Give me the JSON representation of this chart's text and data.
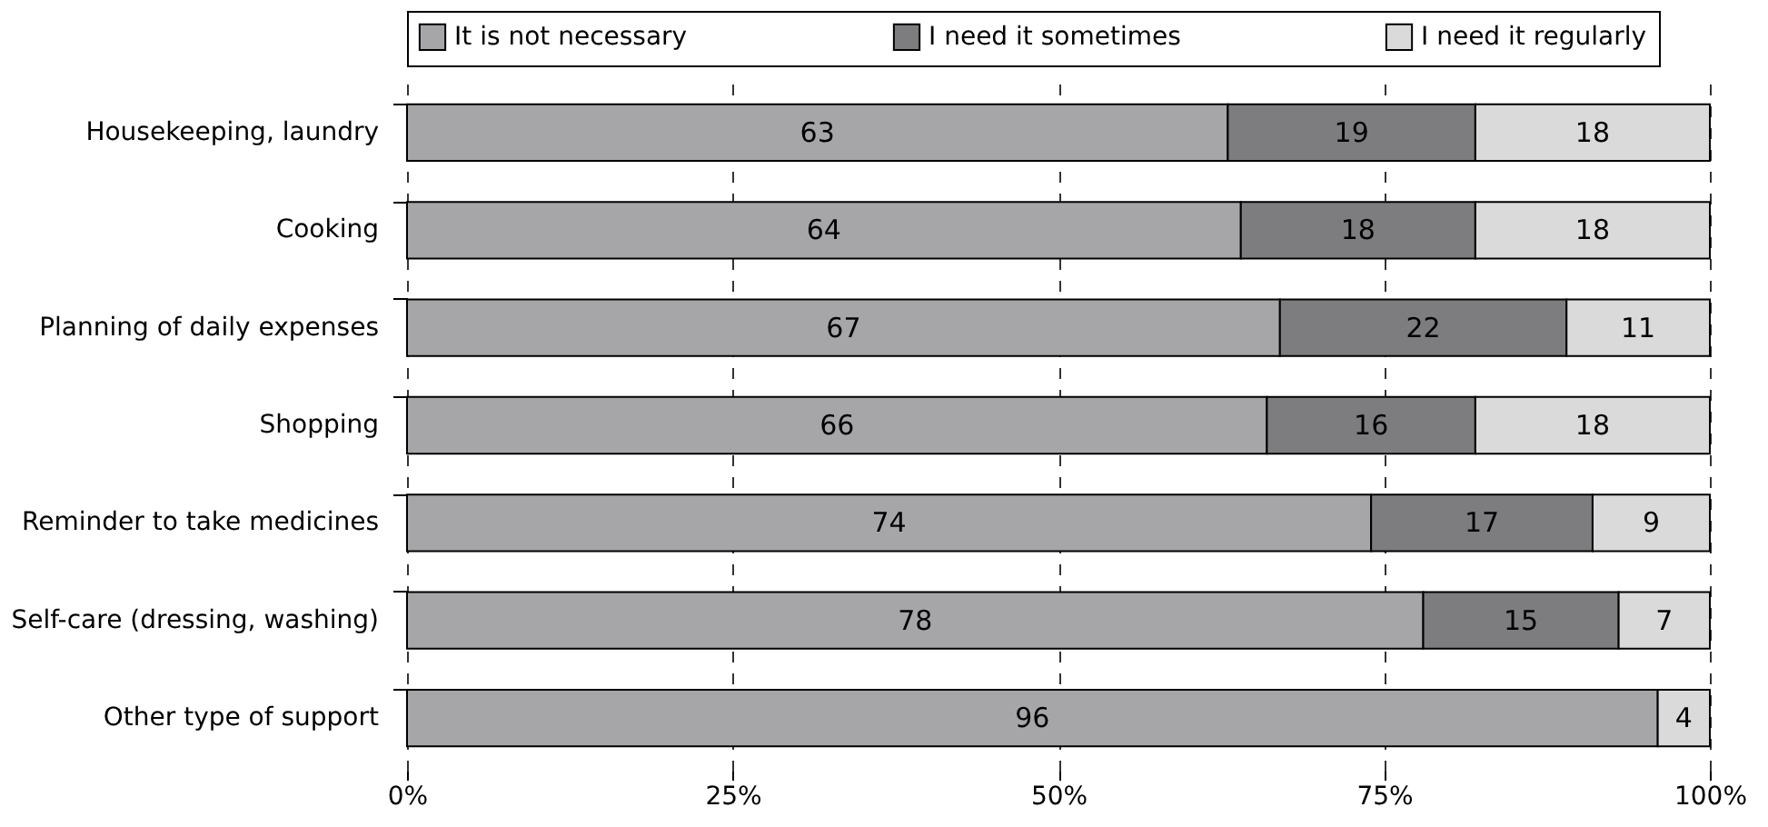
{
  "chart_data": {
    "type": "bar",
    "orientation": "horizontal",
    "stacked": true,
    "categories": [
      "Housekeeping, laundry",
      "Cooking",
      "Planning of daily expenses",
      "Shopping",
      "Reminder to take medicines",
      "Self-care (dressing, washing)",
      "Other type of support"
    ],
    "series": [
      {
        "name": "It is not necessary",
        "color": "#a6a6a8",
        "values": [
          63,
          64,
          67,
          66,
          74,
          78,
          96
        ]
      },
      {
        "name": "I need it sometimes",
        "color": "#7d7d7f",
        "values": [
          19,
          18,
          22,
          16,
          17,
          15,
          null
        ]
      },
      {
        "name": "I need it regularly",
        "color": "#dadadb",
        "values": [
          18,
          18,
          11,
          18,
          9,
          7,
          4
        ]
      }
    ],
    "xlim": [
      0,
      100
    ],
    "xticks": [
      {
        "value": 0,
        "label": "0%"
      },
      {
        "value": 25,
        "label": "25%"
      },
      {
        "value": 50,
        "label": "50%"
      },
      {
        "value": 75,
        "label": "75%"
      },
      {
        "value": 100,
        "label": "100%"
      }
    ],
    "grid": "x",
    "legend": "top",
    "data_labels": true
  }
}
